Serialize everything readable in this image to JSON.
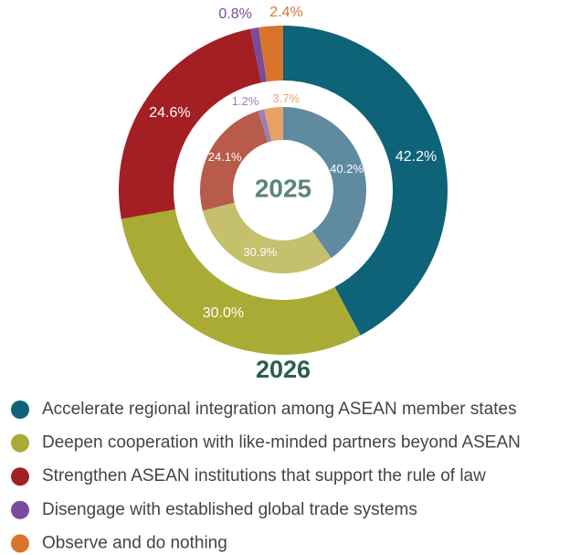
{
  "chart_data": {
    "type": "donut",
    "categories": [
      "Accelerate regional integration among ASEAN member states",
      "Deepen cooperation with like-minded partners beyond ASEAN",
      "Strengthen ASEAN institutions that support the rule of law",
      "Disengage with established global trade systems",
      "Observe and do nothing"
    ],
    "series": [
      {
        "name": "2026",
        "colors": [
          "#0e6378",
          "#a9ab35",
          "#a31f24",
          "#7a4b9c",
          "#d9752a"
        ],
        "values": [
          42.2,
          30.0,
          24.6,
          0.8,
          2.4
        ],
        "value_labels": [
          "42.2%",
          "30.0%",
          "24.6%",
          "0.8%",
          "2.4%"
        ]
      },
      {
        "name": "2025",
        "colors": [
          "#5f8aa0",
          "#c4c06c",
          "#b85b4b",
          "#9a80b8",
          "#e8a065"
        ],
        "values": [
          40.2,
          30.9,
          24.1,
          1.2,
          3.7
        ],
        "value_labels": [
          "40.2%",
          "30.9%",
          "24.1%",
          "1.2%",
          "3.7%"
        ]
      }
    ]
  }
}
